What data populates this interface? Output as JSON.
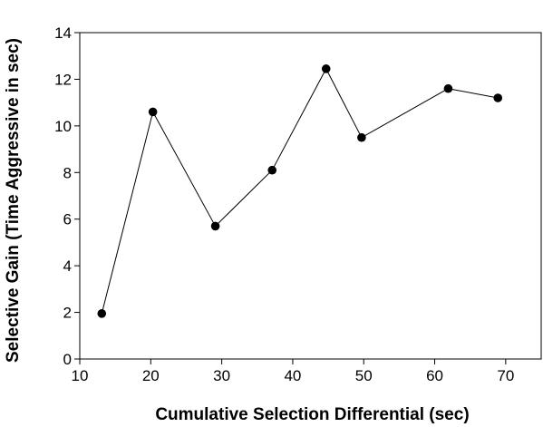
{
  "chart_data": {
    "type": "line",
    "title": "",
    "xlabel": "Cumulative Selection Differential (sec)",
    "ylabel": "Selective Gain (Time Aggressive in sec)",
    "xlim": [
      10,
      75
    ],
    "ylim": [
      0,
      14
    ],
    "x_ticks": [
      10,
      20,
      30,
      40,
      50,
      60,
      70
    ],
    "y_ticks": [
      0,
      2,
      4,
      6,
      8,
      10,
      12,
      14
    ],
    "grid": false,
    "legend": "none",
    "series": [
      {
        "color": "#000000",
        "marker": "circle",
        "x": [
          13.1,
          20.3,
          29.1,
          37.1,
          44.7,
          49.7,
          61.9,
          68.9
        ],
        "y": [
          1.95,
          10.6,
          5.7,
          8.1,
          12.45,
          9.5,
          11.6,
          11.2
        ]
      }
    ]
  }
}
